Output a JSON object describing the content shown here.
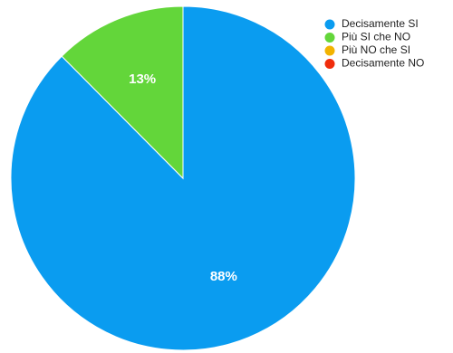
{
  "chart_data": {
    "type": "pie",
    "slices": [
      {
        "label": "Decisamente SI",
        "value": 88,
        "display": "88%",
        "color": "#0a9cf0"
      },
      {
        "label": "Più SI che NO",
        "value": 12.5,
        "display": "13%",
        "color": "#63d63a"
      },
      {
        "label": "Più NO che SI",
        "value": 0,
        "display": "",
        "color": "#f2b300"
      },
      {
        "label": "Decisamente NO",
        "value": 0,
        "display": "",
        "color": "#f02d0c"
      }
    ],
    "start_angle": "top",
    "direction": "clockwise",
    "legend": {
      "placement": "top-right",
      "entries": [
        "Decisamente SI",
        "Più SI che NO",
        "Più NO che SI",
        "Decisamente NO"
      ]
    }
  }
}
